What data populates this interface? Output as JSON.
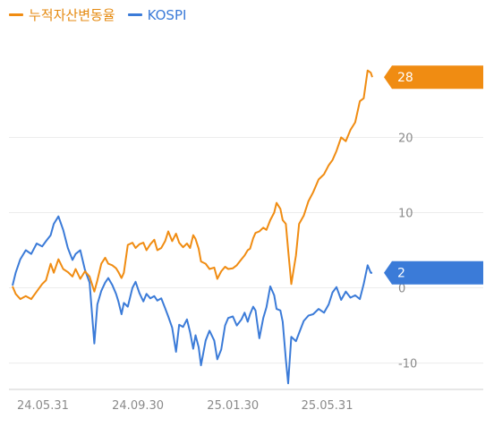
{
  "chart_data": {
    "type": "line",
    "title": "",
    "xlabel": "",
    "ylabel": "",
    "x_tick_labels": [
      "24.05.31",
      "24.09.30",
      "25.01.30",
      "25.05.31"
    ],
    "x_range": [
      "2024-04-22",
      "2025-07-28"
    ],
    "x_tick_dates": [
      "2024-05-31",
      "2024-09-30",
      "2025-01-30",
      "2025-05-31"
    ],
    "y_ticks": [
      -10,
      0,
      10,
      20
    ],
    "ylim": [
      -13.5,
      33.5
    ],
    "grid": true,
    "legend_position": "top-left",
    "series": [
      {
        "name": "누적자산변동율",
        "color": "#f08c12",
        "badge_label": "28",
        "badge_value": 28,
        "points": [
          [
            "2024-04-22",
            0.2
          ],
          [
            "2024-04-26",
            -0.8
          ],
          [
            "2024-05-02",
            -1.5
          ],
          [
            "2024-05-09",
            -1.1
          ],
          [
            "2024-05-16",
            -1.5
          ],
          [
            "2024-05-23",
            -0.5
          ],
          [
            "2024-05-30",
            0.5
          ],
          [
            "2024-06-04",
            1.0
          ],
          [
            "2024-06-10",
            3.2
          ],
          [
            "2024-06-14",
            2.0
          ],
          [
            "2024-06-20",
            3.8
          ],
          [
            "2024-06-26",
            2.5
          ],
          [
            "2024-07-02",
            2.1
          ],
          [
            "2024-07-08",
            1.5
          ],
          [
            "2024-07-12",
            2.5
          ],
          [
            "2024-07-18",
            1.2
          ],
          [
            "2024-07-24",
            2.2
          ],
          [
            "2024-07-30",
            1.5
          ],
          [
            "2024-08-05",
            -0.5
          ],
          [
            "2024-08-09",
            1.0
          ],
          [
            "2024-08-14",
            3.2
          ],
          [
            "2024-08-19",
            4.0
          ],
          [
            "2024-08-23",
            3.2
          ],
          [
            "2024-08-28",
            3.0
          ],
          [
            "2024-09-02",
            2.6
          ],
          [
            "2024-09-05",
            2.1
          ],
          [
            "2024-09-09",
            1.3
          ],
          [
            "2024-09-12",
            2.0
          ],
          [
            "2024-09-17",
            5.7
          ],
          [
            "2024-09-23",
            6.0
          ],
          [
            "2024-09-27",
            5.3
          ],
          [
            "2024-10-02",
            5.8
          ],
          [
            "2024-10-07",
            6.0
          ],
          [
            "2024-10-11",
            5.0
          ],
          [
            "2024-10-16",
            5.8
          ],
          [
            "2024-10-21",
            6.4
          ],
          [
            "2024-10-25",
            5.0
          ],
          [
            "2024-10-30",
            5.3
          ],
          [
            "2024-11-04",
            6.2
          ],
          [
            "2024-11-08",
            7.5
          ],
          [
            "2024-11-13",
            6.2
          ],
          [
            "2024-11-18",
            7.2
          ],
          [
            "2024-11-22",
            6.0
          ],
          [
            "2024-11-27",
            5.4
          ],
          [
            "2024-12-02",
            5.9
          ],
          [
            "2024-12-06",
            5.3
          ],
          [
            "2024-12-10",
            7.0
          ],
          [
            "2024-12-13",
            6.5
          ],
          [
            "2024-12-17",
            5.2
          ],
          [
            "2024-12-20",
            3.5
          ],
          [
            "2024-12-26",
            3.2
          ],
          [
            "2024-12-31",
            2.5
          ],
          [
            "2025-01-06",
            2.7
          ],
          [
            "2025-01-10",
            1.2
          ],
          [
            "2025-01-15",
            2.2
          ],
          [
            "2025-01-20",
            2.8
          ],
          [
            "2025-01-24",
            2.5
          ],
          [
            "2025-01-30",
            2.6
          ],
          [
            "2025-02-04",
            3.0
          ],
          [
            "2025-02-10",
            3.8
          ],
          [
            "2025-02-14",
            4.3
          ],
          [
            "2025-02-18",
            5.0
          ],
          [
            "2025-02-21",
            5.2
          ],
          [
            "2025-02-25",
            6.6
          ],
          [
            "2025-02-28",
            7.3
          ],
          [
            "2025-03-05",
            7.5
          ],
          [
            "2025-03-10",
            8.0
          ],
          [
            "2025-03-14",
            7.7
          ],
          [
            "2025-03-19",
            9.0
          ],
          [
            "2025-03-24",
            10.0
          ],
          [
            "2025-03-27",
            11.3
          ],
          [
            "2025-04-01",
            10.5
          ],
          [
            "2025-04-04",
            9.0
          ],
          [
            "2025-04-08",
            8.5
          ],
          [
            "2025-04-11",
            5.0
          ],
          [
            "2025-04-15",
            0.5
          ],
          [
            "2025-04-21",
            4.3
          ],
          [
            "2025-04-25",
            8.5
          ],
          [
            "2025-05-01",
            9.6
          ],
          [
            "2025-05-07",
            11.5
          ],
          [
            "2025-05-13",
            12.7
          ],
          [
            "2025-05-20",
            14.4
          ],
          [
            "2025-05-27",
            15.1
          ],
          [
            "2025-06-02",
            16.3
          ],
          [
            "2025-06-07",
            17.0
          ],
          [
            "2025-06-12",
            18.2
          ],
          [
            "2025-06-18",
            20.0
          ],
          [
            "2025-06-24",
            19.5
          ],
          [
            "2025-06-30",
            21.0
          ],
          [
            "2025-07-06",
            22.0
          ],
          [
            "2025-07-12",
            24.8
          ],
          [
            "2025-07-17",
            25.2
          ],
          [
            "2025-07-22",
            28.9
          ],
          [
            "2025-07-26",
            28.6
          ],
          [
            "2025-07-28",
            28.0
          ]
        ]
      },
      {
        "name": "KOSPI",
        "color": "#3b7bd8",
        "badge_label": "2",
        "badge_value": 2,
        "points": [
          [
            "2024-04-22",
            0.3
          ],
          [
            "2024-04-26",
            2.0
          ],
          [
            "2024-05-02",
            3.8
          ],
          [
            "2024-05-09",
            5.0
          ],
          [
            "2024-05-16",
            4.5
          ],
          [
            "2024-05-23",
            5.9
          ],
          [
            "2024-05-30",
            5.5
          ],
          [
            "2024-06-04",
            6.2
          ],
          [
            "2024-06-10",
            7.0
          ],
          [
            "2024-06-14",
            8.5
          ],
          [
            "2024-06-20",
            9.5
          ],
          [
            "2024-06-26",
            7.7
          ],
          [
            "2024-07-02",
            5.3
          ],
          [
            "2024-07-08",
            3.7
          ],
          [
            "2024-07-12",
            4.5
          ],
          [
            "2024-07-18",
            5.0
          ],
          [
            "2024-07-24",
            2.4
          ],
          [
            "2024-07-30",
            0.7
          ],
          [
            "2024-08-05",
            -7.4
          ],
          [
            "2024-08-09",
            -2.2
          ],
          [
            "2024-08-14",
            -0.4
          ],
          [
            "2024-08-19",
            0.7
          ],
          [
            "2024-08-23",
            1.3
          ],
          [
            "2024-08-28",
            0.4
          ],
          [
            "2024-09-02",
            -0.8
          ],
          [
            "2024-09-05",
            -1.8
          ],
          [
            "2024-09-09",
            -3.5
          ],
          [
            "2024-09-12",
            -2.0
          ],
          [
            "2024-09-17",
            -2.5
          ],
          [
            "2024-09-23",
            0.0
          ],
          [
            "2024-09-27",
            0.8
          ],
          [
            "2024-10-02",
            -0.7
          ],
          [
            "2024-10-07",
            -1.8
          ],
          [
            "2024-10-11",
            -0.8
          ],
          [
            "2024-10-16",
            -1.4
          ],
          [
            "2024-10-21",
            -1.1
          ],
          [
            "2024-10-25",
            -1.7
          ],
          [
            "2024-10-30",
            -1.4
          ],
          [
            "2024-11-04",
            -2.7
          ],
          [
            "2024-11-08",
            -3.8
          ],
          [
            "2024-11-13",
            -5.3
          ],
          [
            "2024-11-18",
            -8.5
          ],
          [
            "2024-11-22",
            -4.9
          ],
          [
            "2024-11-27",
            -5.2
          ],
          [
            "2024-12-02",
            -4.2
          ],
          [
            "2024-12-06",
            -5.9
          ],
          [
            "2024-12-10",
            -8.1
          ],
          [
            "2024-12-13",
            -6.3
          ],
          [
            "2024-12-17",
            -7.9
          ],
          [
            "2024-12-20",
            -10.3
          ],
          [
            "2024-12-26",
            -7.0
          ],
          [
            "2024-12-31",
            -5.7
          ],
          [
            "2025-01-06",
            -7.0
          ],
          [
            "2025-01-10",
            -9.5
          ],
          [
            "2025-01-15",
            -8.2
          ],
          [
            "2025-01-20",
            -5.0
          ],
          [
            "2025-01-24",
            -4.0
          ],
          [
            "2025-01-30",
            -3.8
          ],
          [
            "2025-02-04",
            -5.0
          ],
          [
            "2025-02-10",
            -4.2
          ],
          [
            "2025-02-14",
            -3.3
          ],
          [
            "2025-02-18",
            -4.5
          ],
          [
            "2025-02-21",
            -3.5
          ],
          [
            "2025-02-25",
            -2.5
          ],
          [
            "2025-02-28",
            -3.0
          ],
          [
            "2025-03-05",
            -6.7
          ],
          [
            "2025-03-10",
            -4.0
          ],
          [
            "2025-03-14",
            -2.6
          ],
          [
            "2025-03-19",
            0.2
          ],
          [
            "2025-03-24",
            -1.0
          ],
          [
            "2025-03-27",
            -2.8
          ],
          [
            "2025-04-01",
            -3.0
          ],
          [
            "2025-04-04",
            -4.5
          ],
          [
            "2025-04-08",
            -9.5
          ],
          [
            "2025-04-11",
            -12.7
          ],
          [
            "2025-04-15",
            -6.5
          ],
          [
            "2025-04-21",
            -7.1
          ],
          [
            "2025-04-25",
            -6.0
          ],
          [
            "2025-05-01",
            -4.4
          ],
          [
            "2025-05-07",
            -3.7
          ],
          [
            "2025-05-13",
            -3.5
          ],
          [
            "2025-05-20",
            -2.8
          ],
          [
            "2025-05-27",
            -3.3
          ],
          [
            "2025-06-02",
            -2.2
          ],
          [
            "2025-06-07",
            -0.6
          ],
          [
            "2025-06-12",
            0.1
          ],
          [
            "2025-06-18",
            -1.6
          ],
          [
            "2025-06-24",
            -0.5
          ],
          [
            "2025-06-30",
            -1.3
          ],
          [
            "2025-07-06",
            -1.0
          ],
          [
            "2025-07-12",
            -1.5
          ],
          [
            "2025-07-17",
            0.5
          ],
          [
            "2025-07-22",
            3.0
          ],
          [
            "2025-07-26",
            2.0
          ],
          [
            "2025-07-28",
            2.0
          ]
        ]
      }
    ]
  }
}
